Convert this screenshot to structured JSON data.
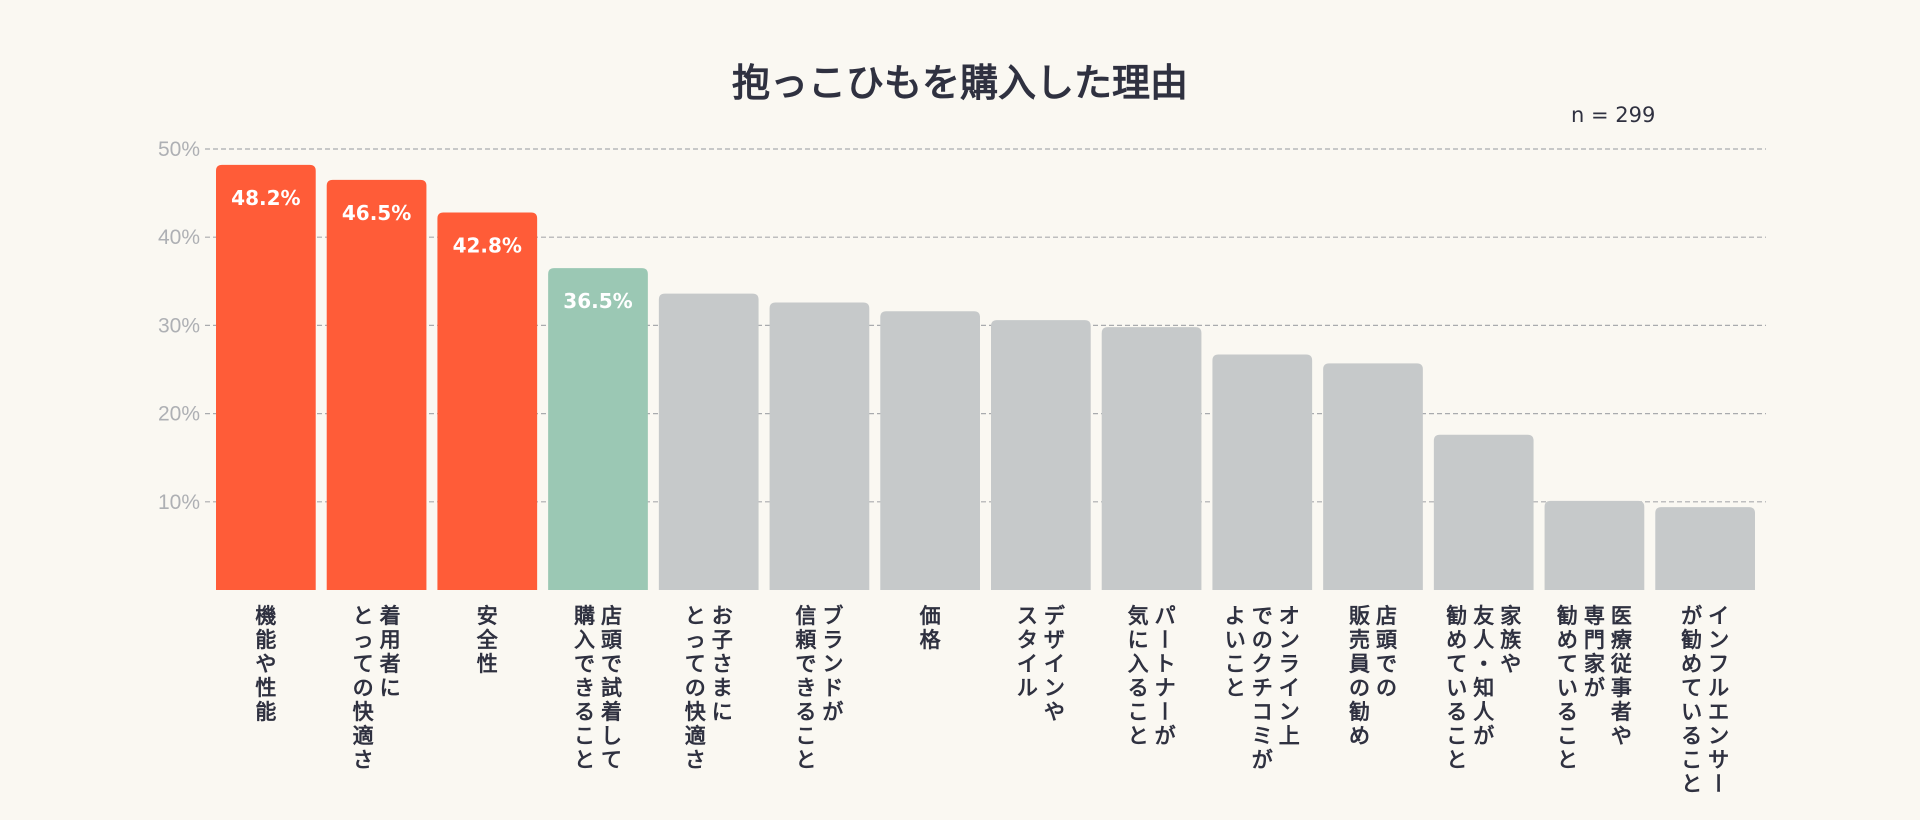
{
  "chart_data": {
    "type": "bar",
    "title": "抱っこひもを購入した理由",
    "sample_size": "n = 299",
    "xlabel": "",
    "ylabel": "",
    "ylim": [
      0,
      50
    ],
    "yticks": [
      "10%",
      "20%",
      "30%",
      "40%",
      "50%"
    ],
    "ytick_values": [
      10,
      20,
      30,
      40,
      50
    ],
    "grid": true,
    "categories": [
      "機能や性能",
      "着用者にとっての快適さ",
      "安全性",
      "店頭で試着して購入できること",
      "お子さまにとっての快適さ",
      "ブランドが信頼できること",
      "価格",
      "デザインやスタイル",
      "パートナーが気に入ること",
      "オンライン上でのクチコミがよいこと",
      "店頭での販売員の勧め",
      "家族や友人・知人が勧めていること",
      "医療従事者や専門家が勧めていること",
      "インフルエンサーが勧めていること"
    ],
    "category_lines": [
      [
        "機能や性能"
      ],
      [
        "着用者に",
        "とっての快適さ"
      ],
      [
        "安全性"
      ],
      [
        "店頭で試着して",
        "購入できること"
      ],
      [
        "お子さまに",
        "とっての快適さ"
      ],
      [
        "ブランドが",
        "信頼できること"
      ],
      [
        "価格"
      ],
      [
        "デザインや",
        "スタイル"
      ],
      [
        "パートナーが",
        "気に入ること"
      ],
      [
        "オンライン上",
        "でのクチコミが",
        "よいこと"
      ],
      [
        "店頭での",
        "販売員の勧め"
      ],
      [
        "家族や",
        "友人・知人が",
        "勧めていること"
      ],
      [
        "医療従事者や",
        "専門家が",
        "勧めていること"
      ],
      [
        "インフルエンサー",
        "が勧めていること"
      ]
    ],
    "values": [
      48.2,
      46.5,
      42.8,
      36.5,
      33.6,
      32.6,
      31.6,
      30.6,
      29.8,
      26.7,
      25.7,
      17.6,
      10.1,
      9.4
    ],
    "data_labels": [
      "48.2%",
      "46.5%",
      "42.8%",
      "36.5%",
      "",
      "",
      "",
      "",
      "",
      "",
      "",
      "",
      "",
      ""
    ],
    "colors": [
      "#ff5c38",
      "#ff5c38",
      "#ff5c38",
      "#9bc8b4",
      "#c6c9ca",
      "#c6c9ca",
      "#c6c9ca",
      "#c6c9ca",
      "#c6c9ca",
      "#c6c9ca",
      "#c6c9ca",
      "#c6c9ca",
      "#c6c9ca",
      "#c6c9ca"
    ]
  }
}
